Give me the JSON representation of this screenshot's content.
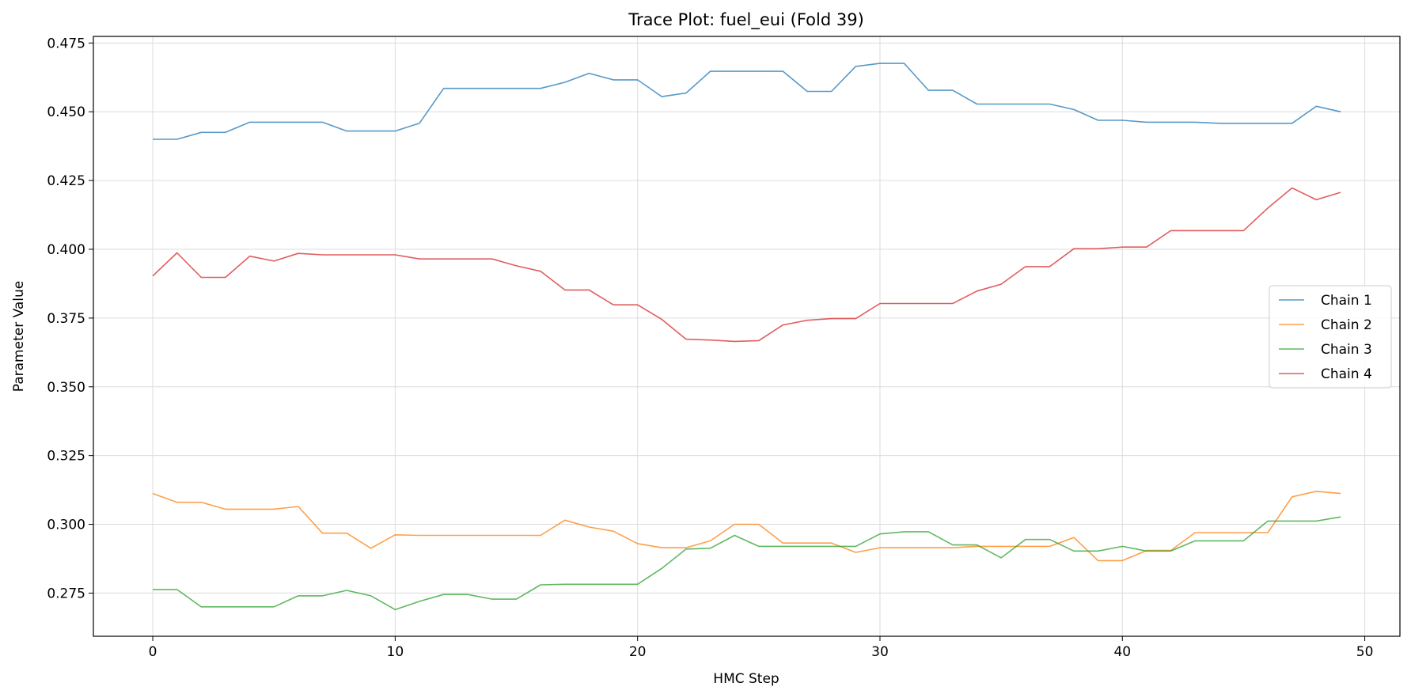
{
  "chart_data": {
    "type": "line",
    "title": "Trace Plot: fuel_eui (Fold 39)",
    "xlabel": "HMC Step",
    "ylabel": "Parameter Value",
    "xlim": [
      -2.45,
      51.45
    ],
    "ylim": [
      0.2593,
      0.4774
    ],
    "xticks": [
      0,
      10,
      20,
      30,
      40,
      50
    ],
    "yticks": [
      0.275,
      0.3,
      0.325,
      0.35,
      0.375,
      0.4,
      0.425,
      0.45,
      0.475
    ],
    "grid": true,
    "legend_position": "center-right",
    "x": [
      0,
      1,
      2,
      3,
      4,
      5,
      6,
      7,
      8,
      9,
      10,
      11,
      12,
      13,
      14,
      15,
      16,
      17,
      18,
      19,
      20,
      21,
      22,
      23,
      24,
      25,
      26,
      27,
      28,
      29,
      30,
      31,
      32,
      33,
      34,
      35,
      36,
      37,
      38,
      39,
      40,
      41,
      42,
      43,
      44,
      45,
      46,
      47,
      48,
      49
    ],
    "series": [
      {
        "name": "Chain 1",
        "color": "#1f77b4",
        "values": [
          0.44,
          0.44,
          0.4425,
          0.4425,
          0.4462,
          0.4462,
          0.4462,
          0.4462,
          0.443,
          0.443,
          0.443,
          0.4458,
          0.4585,
          0.4585,
          0.4585,
          0.4585,
          0.4585,
          0.4607,
          0.464,
          0.4616,
          0.4616,
          0.4555,
          0.4568,
          0.4647,
          0.4647,
          0.4647,
          0.4647,
          0.4574,
          0.4574,
          0.4665,
          0.4676,
          0.4676,
          0.4578,
          0.4578,
          0.4528,
          0.4528,
          0.4528,
          0.4528,
          0.4508,
          0.4469,
          0.4469,
          0.4462,
          0.4462,
          0.4462,
          0.4458,
          0.4458,
          0.4458,
          0.4458,
          0.452,
          0.45
        ]
      },
      {
        "name": "Chain 2",
        "color": "#ff7f0e",
        "values": [
          0.3112,
          0.308,
          0.308,
          0.3055,
          0.3055,
          0.3055,
          0.3065,
          0.2968,
          0.2968,
          0.2913,
          0.2962,
          0.296,
          0.296,
          0.296,
          0.296,
          0.296,
          0.296,
          0.3015,
          0.299,
          0.2975,
          0.293,
          0.2915,
          0.2915,
          0.294,
          0.3,
          0.3,
          0.2932,
          0.2932,
          0.2932,
          0.2898,
          0.2915,
          0.2915,
          0.2915,
          0.2915,
          0.292,
          0.292,
          0.292,
          0.292,
          0.2952,
          0.2868,
          0.2868,
          0.2905,
          0.2905,
          0.297,
          0.297,
          0.297,
          0.297,
          0.31,
          0.312,
          0.3112
        ]
      },
      {
        "name": "Chain 3",
        "color": "#2ca02c",
        "values": [
          0.2763,
          0.2763,
          0.27,
          0.27,
          0.27,
          0.27,
          0.274,
          0.274,
          0.276,
          0.274,
          0.269,
          0.272,
          0.2745,
          0.2745,
          0.2728,
          0.2728,
          0.278,
          0.2782,
          0.2782,
          0.2782,
          0.2782,
          0.284,
          0.291,
          0.2913,
          0.296,
          0.292,
          0.292,
          0.292,
          0.292,
          0.292,
          0.2965,
          0.2973,
          0.2973,
          0.2925,
          0.2925,
          0.2878,
          0.2945,
          0.2945,
          0.2903,
          0.2903,
          0.292,
          0.2903,
          0.2903,
          0.294,
          0.294,
          0.294,
          0.3012,
          0.3012,
          0.3012,
          0.3027
        ]
      },
      {
        "name": "Chain 4",
        "color": "#d62728",
        "values": [
          0.3903,
          0.3987,
          0.3898,
          0.3898,
          0.3975,
          0.3957,
          0.3985,
          0.398,
          0.398,
          0.398,
          0.398,
          0.3965,
          0.3965,
          0.3965,
          0.3965,
          0.394,
          0.392,
          0.3852,
          0.3852,
          0.3798,
          0.3798,
          0.3745,
          0.3673,
          0.367,
          0.3665,
          0.3668,
          0.3725,
          0.3742,
          0.3748,
          0.3748,
          0.3803,
          0.3803,
          0.3803,
          0.3803,
          0.3848,
          0.3873,
          0.3937,
          0.3937,
          0.4002,
          0.4002,
          0.4008,
          0.4008,
          0.4068,
          0.4068,
          0.4068,
          0.4068,
          0.415,
          0.4223,
          0.418,
          0.4207
        ]
      }
    ]
  }
}
